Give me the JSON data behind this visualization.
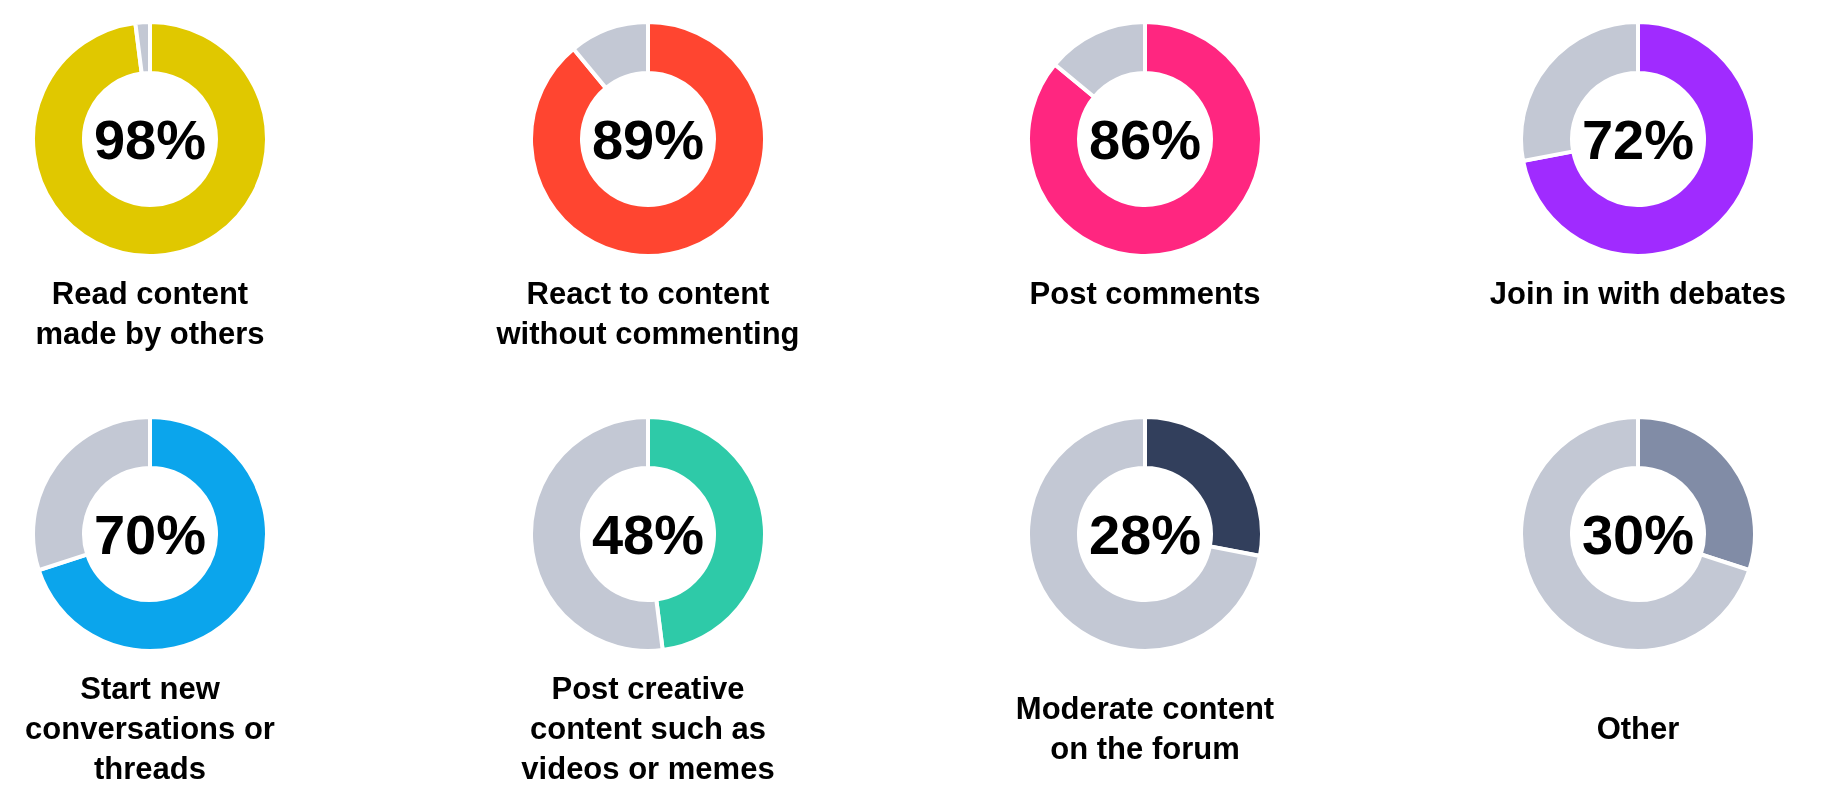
{
  "chart_data": [
    {
      "type": "donut",
      "title": "Read content\nmade by others",
      "categories": [
        null,
        null
      ],
      "values": [
        98,
        2
      ],
      "colors": [
        "#e0c800",
        "#c3c8d4"
      ],
      "annotations": [
        "98%"
      ]
    },
    {
      "type": "donut",
      "title": "React to content\nwithout commenting",
      "categories": [
        null,
        null
      ],
      "values": [
        89,
        11
      ],
      "colors": [
        "#ff4530",
        "#c3c8d4"
      ],
      "annotations": [
        "89%"
      ]
    },
    {
      "type": "donut",
      "title": "Post comments",
      "categories": [
        null,
        null
      ],
      "values": [
        86,
        14
      ],
      "colors": [
        "#ff2680",
        "#c3c8d4"
      ],
      "annotations": [
        "86%"
      ]
    },
    {
      "type": "donut",
      "title": "Join in with debates",
      "categories": [
        null,
        null
      ],
      "values": [
        72,
        28
      ],
      "colors": [
        "#a02bff",
        "#c3c8d4"
      ],
      "annotations": [
        "72%"
      ]
    },
    {
      "type": "donut",
      "title": "Start new\nconversations or\nthreads",
      "categories": [
        null,
        null
      ],
      "values": [
        70,
        30
      ],
      "colors": [
        "#0ba5ec",
        "#c3c8d4"
      ],
      "annotations": [
        "70%"
      ]
    },
    {
      "type": "donut",
      "title": "Post creative\ncontent such as\nvideos or memes",
      "categories": [
        null,
        null
      ],
      "values": [
        48,
        52
      ],
      "colors": [
        "#2ecaa8",
        "#c3c8d4"
      ],
      "annotations": [
        "48%"
      ]
    },
    {
      "type": "donut",
      "title": "Moderate content\non the forum",
      "categories": [
        null,
        null
      ],
      "values": [
        28,
        72
      ],
      "colors": [
        "#323f5c",
        "#c3c8d4"
      ],
      "annotations": [
        "28%"
      ]
    },
    {
      "type": "donut",
      "title": "Other",
      "categories": [
        null,
        null
      ],
      "values": [
        30,
        70
      ],
      "colors": [
        "#818ca6",
        "#c3c8d4"
      ],
      "annotations": [
        "30%"
      ]
    }
  ]
}
